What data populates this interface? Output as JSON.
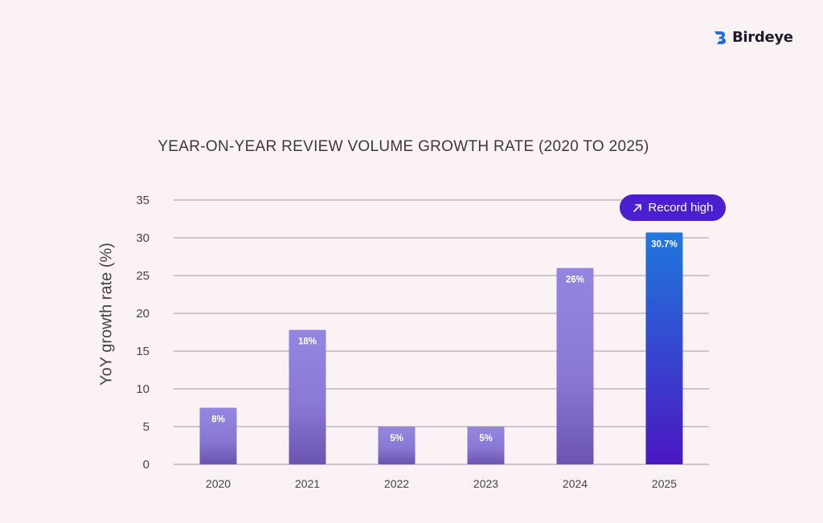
{
  "brand": {
    "name": "Birdeye",
    "icon": "birdeye-logo-icon"
  },
  "badge": {
    "label": "Record high",
    "icon": "arrow-up-right-icon"
  },
  "chart_data": {
    "type": "bar",
    "title": "YEAR-ON-YEAR REVIEW VOLUME GROWTH RATE (2020 TO 2025)",
    "xlabel": "",
    "ylabel": "YoY growth rate (%)",
    "categories": [
      "2020",
      "2021",
      "2022",
      "2023",
      "2024",
      "2025"
    ],
    "values": [
      7.5,
      17.8,
      5,
      5,
      26,
      30.7
    ],
    "data_labels": [
      "8%",
      "18%",
      "5%",
      "5%",
      "26%",
      "30.7%"
    ],
    "ylim": [
      0,
      35
    ],
    "yticks": [
      "0",
      "5",
      "10",
      "15",
      "20",
      "25",
      "30",
      "35"
    ],
    "grid": true,
    "colors": {
      "bar": "#8c79d8",
      "highlight": "#2b66d6",
      "badge": "#4b1fcf"
    },
    "highlight_index": 5
  }
}
